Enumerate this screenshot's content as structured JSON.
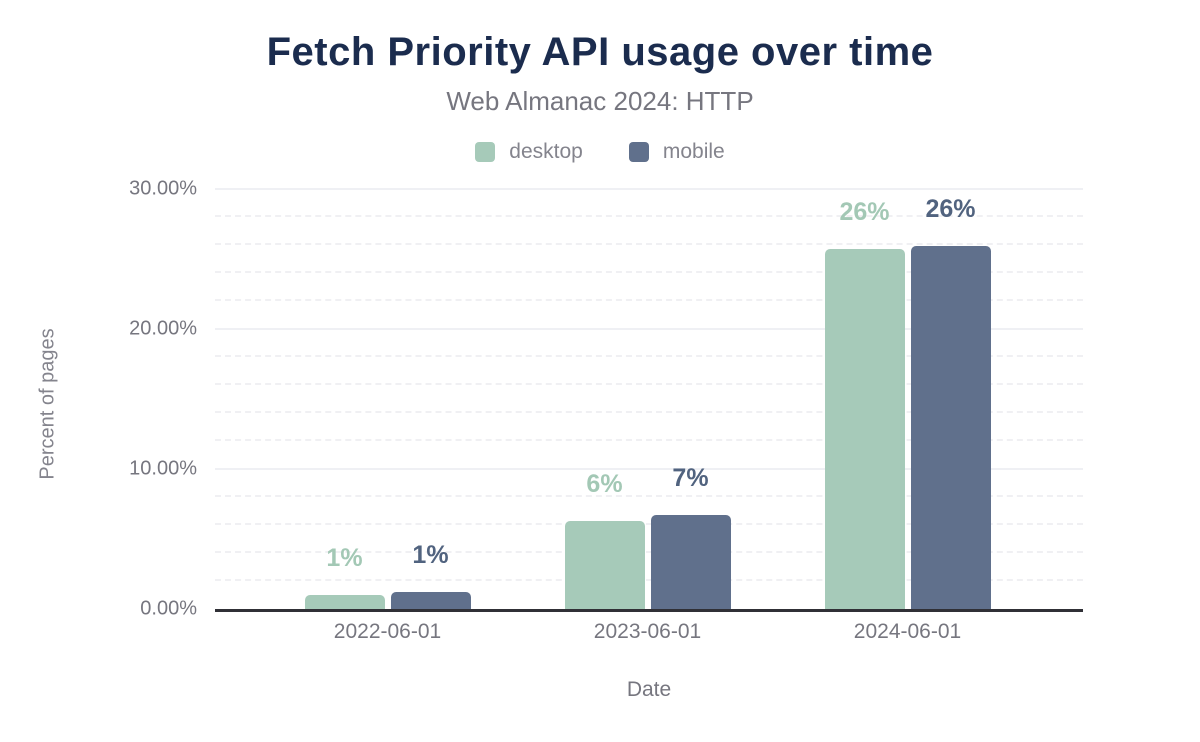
{
  "title": "Fetch Priority API usage over time",
  "subtitle": "Web Almanac 2024: HTTP",
  "colors": {
    "title_text": "#1b2c4e",
    "muted_text": "#76767f",
    "axis_line": "#303036",
    "gridline_major": "#eff0f4",
    "gridline_minor": "#f0f0f3",
    "desktop": "#a6cab9",
    "mobile": "#60708c",
    "desktop_label": "#a3c8b5",
    "mobile_label": "#51637f"
  },
  "chart_data": {
    "type": "bar",
    "title": "Fetch Priority API usage over time",
    "subtitle": "Web Almanac 2024: HTTP",
    "categories": [
      "2022-06-01",
      "2023-06-01",
      "2024-06-01"
    ],
    "series": [
      {
        "name": "desktop",
        "color": "#a6cab9",
        "label_color": "#a3c8b5",
        "values": [
          1.0,
          6.3,
          25.7
        ],
        "labels": [
          "1%",
          "6%",
          "26%"
        ]
      },
      {
        "name": "mobile",
        "color": "#60708c",
        "label_color": "#51637f",
        "values": [
          1.2,
          6.7,
          25.9
        ],
        "labels": [
          "1%",
          "7%",
          "26%"
        ]
      }
    ],
    "xlabel": "Date",
    "ylabel": "Percent of pages",
    "ylim": [
      0,
      30
    ],
    "ytick_values": [
      0,
      10,
      20,
      30
    ],
    "yticks": [
      "0.00%",
      "10.00%",
      "20.00%",
      "30.00%"
    ],
    "grid": {
      "major_every": 10,
      "minor_every": 2,
      "minor_style": "dashed"
    },
    "legend_position": "top",
    "bar_corner_radius": 5
  }
}
